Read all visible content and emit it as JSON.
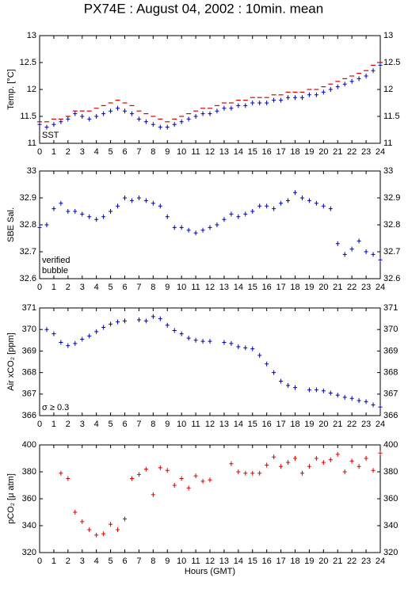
{
  "title": "PX74E : August 04, 2002 : 10min. mean",
  "chart_data": [
    {
      "type": "scatter",
      "ylabel": "Temp. [°C]",
      "xlim": [
        0,
        24
      ],
      "xticks": [
        0,
        1,
        2,
        3,
        4,
        5,
        6,
        7,
        8,
        9,
        10,
        11,
        12,
        13,
        14,
        15,
        16,
        17,
        18,
        19,
        20,
        21,
        22,
        23,
        24
      ],
      "ylim": [
        11,
        13
      ],
      "yticks": [
        11,
        11.5,
        12,
        12.5,
        13
      ],
      "x": [
        0,
        0.5,
        1,
        1.5,
        2,
        2.5,
        3,
        3.5,
        4,
        4.5,
        5,
        5.5,
        6,
        6.5,
        7,
        7.5,
        8,
        8.5,
        9,
        9.5,
        10,
        10.5,
        11,
        11.5,
        12,
        12.5,
        13,
        13.5,
        14,
        14.5,
        15,
        15.5,
        16,
        16.5,
        17,
        17.5,
        18,
        18.5,
        19,
        19.5,
        20,
        20.5,
        21,
        21.5,
        22,
        22.5,
        23,
        23.5,
        24
      ],
      "series": [
        {
          "color": "#dd0000",
          "marker": "dash",
          "values": [
            11.4,
            11.4,
            11.45,
            11.45,
            11.5,
            11.6,
            11.6,
            11.6,
            11.65,
            11.7,
            11.75,
            11.8,
            11.75,
            11.7,
            11.6,
            11.55,
            11.5,
            11.45,
            11.4,
            11.45,
            11.5,
            11.55,
            11.6,
            11.65,
            11.65,
            11.7,
            11.75,
            11.75,
            11.8,
            11.8,
            11.85,
            11.85,
            11.85,
            11.9,
            11.9,
            11.95,
            11.95,
            11.95,
            12.0,
            12.0,
            12.05,
            12.1,
            12.15,
            12.2,
            12.25,
            12.3,
            12.35,
            12.45,
            12.5
          ]
        },
        {
          "name": "SST",
          "color": "#0000bb",
          "marker": "plus",
          "values": [
            11.35,
            11.3,
            11.35,
            11.4,
            11.45,
            11.55,
            11.5,
            11.45,
            11.5,
            11.55,
            11.6,
            11.65,
            11.6,
            11.55,
            11.45,
            11.4,
            11.35,
            11.3,
            11.3,
            11.35,
            11.4,
            11.45,
            11.5,
            11.55,
            11.55,
            11.6,
            11.65,
            11.65,
            11.7,
            11.7,
            11.75,
            11.75,
            11.75,
            11.8,
            11.8,
            11.85,
            11.85,
            11.85,
            11.9,
            11.9,
            11.95,
            12.0,
            12.05,
            12.1,
            12.15,
            12.2,
            12.25,
            12.35,
            12.45
          ]
        }
      ]
    },
    {
      "type": "scatter",
      "ylabel": "SBE Sal.",
      "xlim": [
        0,
        24
      ],
      "xticks": [
        0,
        1,
        2,
        3,
        4,
        5,
        6,
        7,
        8,
        9,
        10,
        11,
        12,
        13,
        14,
        15,
        16,
        17,
        18,
        19,
        20,
        21,
        22,
        23,
        24
      ],
      "ylim": [
        32.6,
        33
      ],
      "yticks": [
        32.6,
        32.7,
        32.8,
        32.9,
        33
      ],
      "x": [
        0,
        0.5,
        1,
        1.5,
        2,
        2.5,
        3,
        3.5,
        4,
        4.5,
        5,
        5.5,
        6,
        6.5,
        7,
        7.5,
        8,
        8.5,
        9,
        9.5,
        10,
        10.5,
        11,
        11.5,
        12,
        12.5,
        13,
        13.5,
        14,
        14.5,
        15,
        15.5,
        16,
        16.5,
        17,
        17.5,
        18,
        18.5,
        19,
        19.5,
        20,
        20.5,
        21,
        21.5,
        22,
        22.5,
        23,
        23.5,
        24
      ],
      "series": [
        {
          "name": "verified",
          "color": "#0000bb",
          "marker": "plus",
          "values": [
            32.79,
            32.8,
            32.86,
            32.88,
            32.85,
            32.85,
            32.84,
            32.83,
            32.82,
            32.83,
            32.85,
            32.87,
            32.9,
            32.89,
            32.9,
            32.89,
            32.88,
            32.87,
            32.83,
            32.79,
            32.79,
            32.78,
            32.77,
            32.78,
            32.79,
            32.8,
            32.82,
            32.84,
            32.83,
            32.84,
            32.85,
            32.87,
            32.87,
            32.86,
            32.88,
            32.89,
            32.92,
            32.9,
            32.89,
            32.88,
            32.87,
            32.86,
            32.73,
            32.69,
            32.71,
            32.74,
            32.7,
            32.69,
            32.67
          ]
        }
      ],
      "annotations": [
        {
          "text": "bubble",
          "color": "#cc00cc"
        }
      ]
    },
    {
      "type": "scatter",
      "ylabel": "Air xCO₂ [ppm]",
      "xlim": [
        0,
        24
      ],
      "xticks": [
        0,
        1,
        2,
        3,
        4,
        5,
        6,
        7,
        8,
        9,
        10,
        11,
        12,
        13,
        14,
        15,
        16,
        17,
        18,
        19,
        20,
        21,
        22,
        23,
        24
      ],
      "ylim": [
        366,
        371
      ],
      "yticks": [
        366,
        367,
        368,
        369,
        370,
        371
      ],
      "x": [
        0,
        0.5,
        1,
        1.5,
        2,
        2.5,
        3,
        3.5,
        4,
        4.5,
        5,
        5.5,
        6,
        6.5,
        7,
        7.5,
        8,
        8.5,
        9,
        9.5,
        10,
        10.5,
        11,
        11.5,
        12,
        12.5,
        13,
        13.5,
        14,
        14.5,
        15,
        15.5,
        16,
        16.5,
        17,
        17.5,
        18,
        18.5,
        19,
        19.5,
        20,
        20.5,
        21,
        21.5,
        22,
        22.5,
        23,
        23.5,
        24
      ],
      "series": [
        {
          "color": "#0000bb",
          "marker": "plus",
          "values": [
            null,
            370.0,
            369.8,
            369.4,
            369.25,
            369.35,
            369.55,
            369.7,
            369.9,
            370.1,
            370.25,
            370.35,
            370.4,
            null,
            370.45,
            370.4,
            370.6,
            370.5,
            370.2,
            369.95,
            369.8,
            369.6,
            369.5,
            369.45,
            369.45,
            null,
            369.4,
            369.35,
            369.2,
            369.15,
            369.1,
            368.8,
            368.4,
            368.0,
            367.6,
            367.4,
            367.3,
            null,
            367.2,
            367.2,
            367.15,
            367.05,
            366.95,
            366.85,
            366.8,
            366.7,
            366.65,
            366.5,
            366.4
          ]
        }
      ],
      "annotations": [
        {
          "text": "σ ≥ 0.3",
          "color": "#cc00cc"
        }
      ]
    },
    {
      "type": "scatter",
      "ylabel": "pCO₂ [μ atm]",
      "xlabel": "Hours (GMT)",
      "xlim": [
        0,
        24
      ],
      "xticks": [
        0,
        1,
        2,
        3,
        4,
        5,
        6,
        7,
        8,
        9,
        10,
        11,
        12,
        13,
        14,
        15,
        16,
        17,
        18,
        19,
        20,
        21,
        22,
        23,
        24
      ],
      "ylim": [
        320,
        400
      ],
      "yticks": [
        320,
        340,
        360,
        380,
        400
      ],
      "x": [
        0,
        0.5,
        1,
        1.5,
        2,
        2.5,
        3,
        3.5,
        4,
        4.5,
        5,
        5.5,
        6,
        6.5,
        7,
        7.5,
        8,
        8.5,
        9,
        9.5,
        10,
        10.5,
        11,
        11.5,
        12,
        12.5,
        13,
        13.5,
        14,
        14.5,
        15,
        15.5,
        16,
        16.5,
        17,
        17.5,
        18,
        18.5,
        19,
        19.5,
        20,
        20.5,
        21,
        21.5,
        22,
        22.5,
        23,
        23.5,
        24
      ],
      "series": [
        {
          "color": "#dd0000",
          "marker": "plus",
          "values": [
            null,
            null,
            null,
            379,
            375,
            350,
            343,
            337,
            333,
            334,
            341,
            337,
            345,
            375,
            378,
            382,
            363,
            383,
            381,
            370,
            375,
            368,
            377,
            373,
            374,
            null,
            null,
            386,
            380,
            379,
            379,
            379,
            385,
            391,
            384,
            387,
            390,
            379,
            384,
            390,
            387,
            389,
            393,
            380,
            388,
            384,
            390,
            381,
            394
          ]
        }
      ]
    }
  ]
}
